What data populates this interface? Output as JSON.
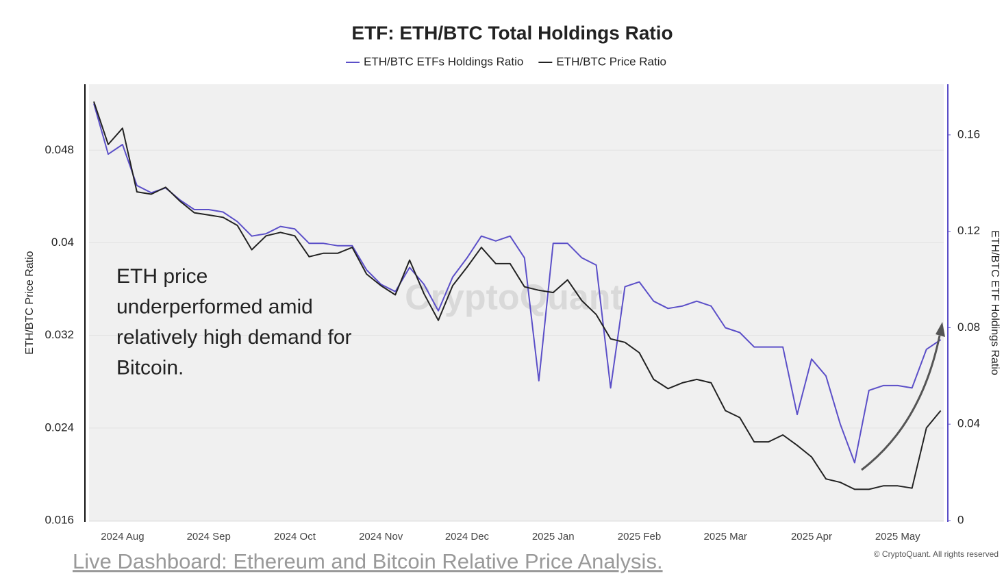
{
  "chart_data": {
    "type": "line",
    "title": "ETF: ETH/BTC Total Holdings Ratio",
    "ylabel": "ETH/BTC Price Ratio",
    "y2label": "ETH/BTC ETF Holdings Ratio",
    "annotation": [
      "ETH price",
      "underperformed amid",
      "relatively high demand for",
      "Bitcoin."
    ],
    "watermark": "CryptoQuant",
    "copyright": "© CryptoQuant. All rights reserved",
    "link": "Live Dashboard: Ethereum and Bitcoin Relative Price Analysis.",
    "categories": [
      null,
      null,
      "2024 Aug",
      null,
      null,
      null,
      null,
      null,
      "2024 Sep",
      null,
      null,
      null,
      null,
      null,
      "2024 Oct",
      null,
      null,
      null,
      null,
      null,
      "2024 Nov",
      null,
      null,
      null,
      null,
      null,
      "2024 Dec",
      null,
      null,
      null,
      null,
      null,
      "2025 Jan",
      null,
      null,
      null,
      null,
      null,
      "2025 Feb",
      null,
      null,
      null,
      null,
      null,
      "2025 Mar",
      null,
      null,
      null,
      null,
      null,
      "2025 Apr",
      null,
      null,
      null,
      null,
      null,
      "2025 May",
      null,
      null,
      null
    ],
    "series": [
      {
        "name": "ETH/BTC ETFs Holdings Ratio",
        "color": "#5b4fc8",
        "axis": "y2",
        "values": [
          0.173,
          0.152,
          0.156,
          0.139,
          0.136,
          0.138,
          0.133,
          0.129,
          0.129,
          0.128,
          0.124,
          0.118,
          0.119,
          0.122,
          0.121,
          0.115,
          0.115,
          0.114,
          0.114,
          0.104,
          0.098,
          0.095,
          0.105,
          0.098,
          0.087,
          0.101,
          0.109,
          0.118,
          0.116,
          0.118,
          0.109,
          0.058,
          0.115,
          0.115,
          0.109,
          0.106,
          0.055,
          0.097,
          0.099,
          0.091,
          0.088,
          0.089,
          0.091,
          0.089,
          0.08,
          0.078,
          0.072,
          0.072,
          0.072,
          0.044,
          0.067,
          0.06,
          0.04,
          0.024,
          0.054,
          0.056,
          0.056,
          0.055,
          0.071,
          0.075
        ]
      },
      {
        "name": "ETH/BTC Price Ratio",
        "color": "#222222",
        "values": [
          0.0522,
          0.0485,
          0.0499,
          0.0444,
          0.0442,
          0.0448,
          0.0436,
          0.0426,
          0.0424,
          0.0422,
          0.0415,
          0.0394,
          0.0406,
          0.0409,
          0.0406,
          0.0388,
          0.0391,
          0.0391,
          0.0396,
          0.0373,
          0.0363,
          0.0355,
          0.0385,
          0.0356,
          0.0333,
          0.0363,
          0.0379,
          0.0396,
          0.0382,
          0.0382,
          0.0362,
          0.0359,
          0.0357,
          0.0368,
          0.035,
          0.0338,
          0.0317,
          0.0314,
          0.0305,
          0.0282,
          0.0274,
          0.0279,
          0.0282,
          0.0279,
          0.0255,
          0.0249,
          0.0228,
          0.0228,
          0.0234,
          0.0225,
          0.0215,
          0.0196,
          0.0193,
          0.0187,
          0.0187,
          0.019,
          0.019,
          0.0188,
          0.024,
          0.0255
        ]
      }
    ],
    "ylim": [
      0.016,
      0.0537
    ],
    "yticks": [
      0.016,
      0.024,
      0.032,
      0.04,
      0.048
    ],
    "y2lim": [
      0,
      0.181
    ],
    "y2ticks": [
      0,
      0.04,
      0.08,
      0.12,
      0.16
    ],
    "grid": true
  }
}
